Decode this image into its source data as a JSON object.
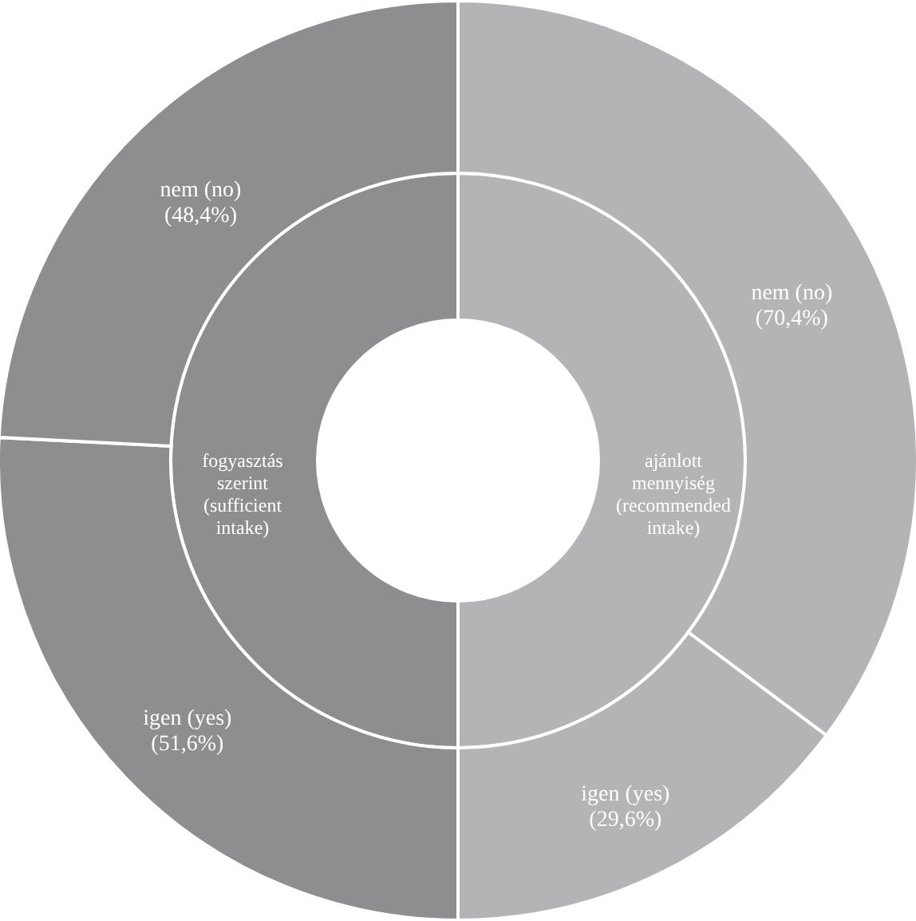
{
  "chart_data": [
    {
      "type": "donut",
      "categories": [
        "ajánlott\nmennyiség\n(recommended\nintake)",
        "fogyasztás\nszerint\n(sufficient\nintake)"
      ],
      "values": [
        50,
        50
      ],
      "colors": [
        "#b4b4b6",
        "#8e8e90"
      ]
    },
    {
      "type": "donut",
      "categories": [
        "nem (no)",
        "igen (yes)",
        "igen (yes)",
        "nem (no)"
      ],
      "values": [
        70.4,
        29.6,
        51.6,
        48.4
      ],
      "value_labels": [
        "(70,4%)",
        "(29,6%)",
        "(51,6%)",
        "(48,4%)"
      ],
      "colors": [
        "#b4b4b6",
        "#b4b4b6",
        "#8e8e90",
        "#8e8e90"
      ]
    }
  ]
}
